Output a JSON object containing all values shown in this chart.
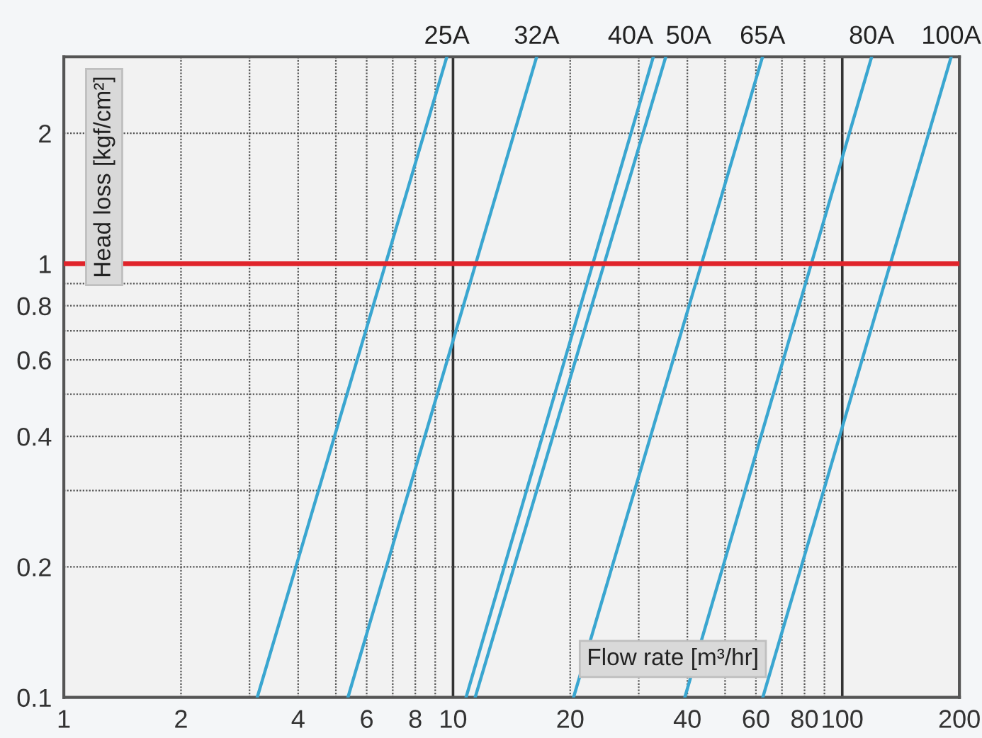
{
  "chart_data": {
    "type": "line",
    "log": "xy",
    "xlabel": "Flow rate [m³/hr]",
    "ylabel": "Head loss [kgf/cm²]",
    "xlim": [
      1,
      200
    ],
    "ylim": [
      0.1,
      3
    ],
    "xticks": [
      1,
      2,
      {
        "value": 3,
        "label": null
      },
      4,
      {
        "value": 5,
        "label": null
      },
      6,
      {
        "value": 7,
        "label": null
      },
      8,
      {
        "value": 9,
        "label": null
      },
      10,
      20,
      {
        "value": 30,
        "label": null
      },
      40,
      {
        "value": 50,
        "label": null
      },
      60,
      {
        "value": 70,
        "label": null
      },
      80,
      {
        "value": 90,
        "label": null
      },
      100,
      200
    ],
    "yticks": [
      0.1,
      0.2,
      {
        "value": 0.3,
        "label": null
      },
      0.4,
      {
        "value": 0.5,
        "label": null
      },
      0.6,
      {
        "value": 0.7,
        "label": null
      },
      0.8,
      {
        "value": 0.9,
        "label": null
      },
      1,
      2
    ],
    "grid": true,
    "legend": false,
    "marker": "none",
    "line_style": "solid",
    "ref_lines": [
      {
        "axis": "y",
        "value": 1,
        "color": "#e0242b"
      }
    ],
    "series": [
      {
        "name": "25A",
        "color": "#3aa6d0",
        "x": [
          3.14,
          9.64
        ],
        "values": [
          0.1,
          3
        ]
      },
      {
        "name": "32A",
        "color": "#3aa6d0",
        "x": [
          5.37,
          16.4
        ],
        "values": [
          0.1,
          3
        ]
      },
      {
        "name": "40A",
        "color": "#3aa6d0",
        "x": [
          10.8,
          32.7
        ],
        "values": [
          0.1,
          3
        ]
      },
      {
        "name": "50A",
        "color": "#3aa6d0",
        "x": [
          11.4,
          35.2
        ],
        "values": [
          0.1,
          3
        ]
      },
      {
        "name": "65A",
        "color": "#3aa6d0",
        "x": [
          20.4,
          62.4
        ],
        "values": [
          0.1,
          3
        ]
      },
      {
        "name": "80A",
        "color": "#3aa6d0",
        "x": [
          39.4,
          119
        ],
        "values": [
          0.1,
          3
        ]
      },
      {
        "name": "100A",
        "color": "#3aa6d0",
        "x": [
          62.5,
          190.5
        ],
        "values": [
          0.1,
          3
        ]
      }
    ]
  }
}
